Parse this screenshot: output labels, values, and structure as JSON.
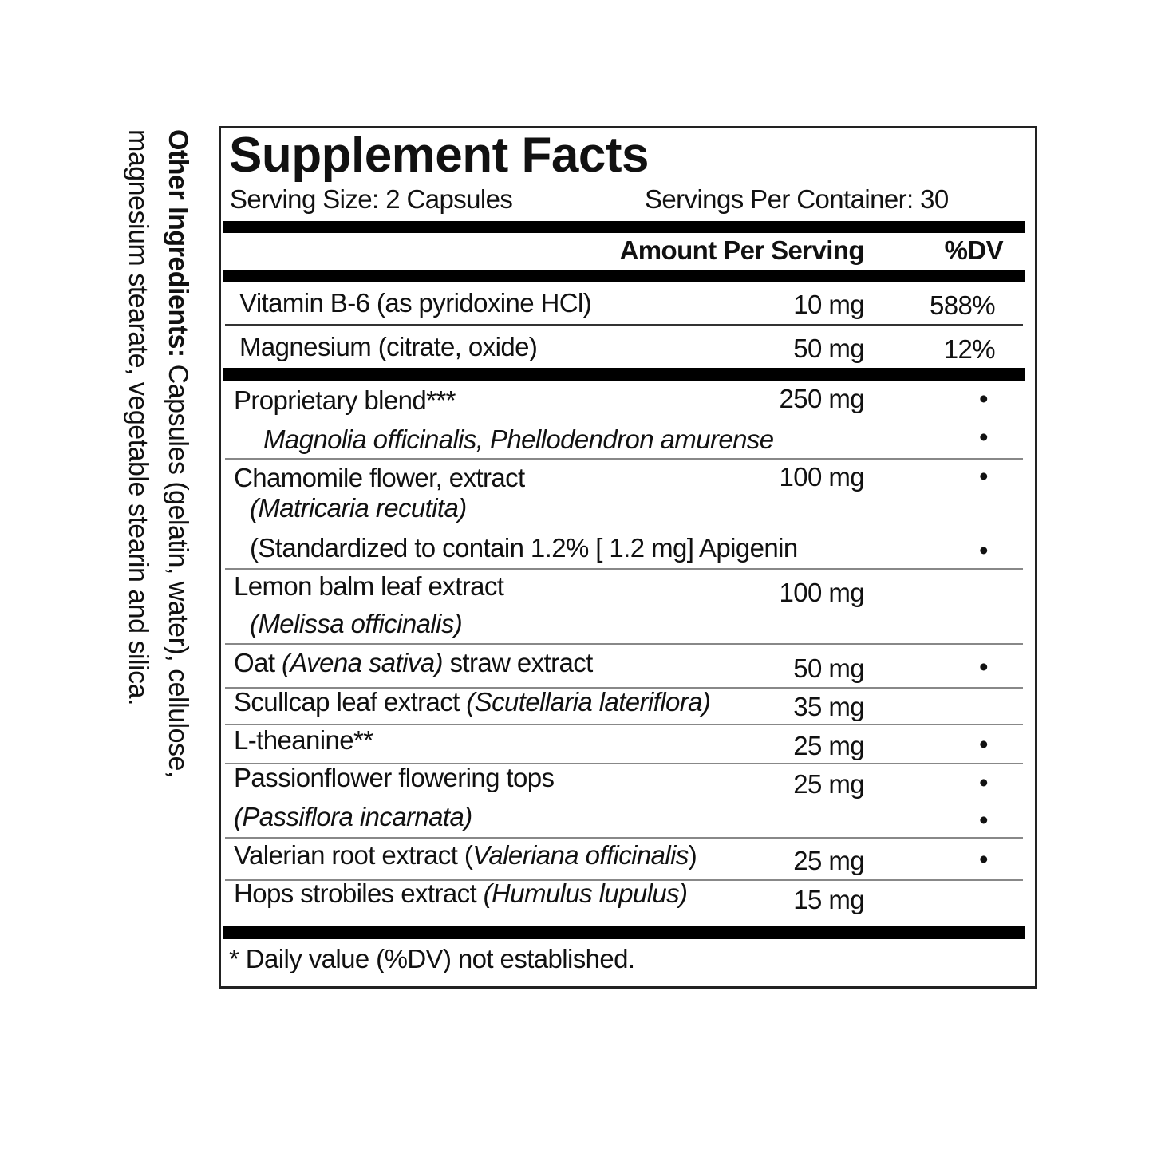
{
  "other_ingredients": {
    "label": "Other Ingredients:",
    "text_line1": " Capsules (gelatin, water), cellulose,",
    "text_line2": "magnesium stearate, vegetable stearin and silica."
  },
  "title": "Supplement Facts",
  "serving_size": "Serving Size: 2 Capsules",
  "servings_per_container": "Servings Per Container: 30",
  "header": {
    "amount": "Amount Per Serving",
    "dv": "%DV"
  },
  "vitamins": [
    {
      "name": "Vitamin B-6 (as pyridoxine HCl)",
      "amount": "10 mg",
      "dv": "588%"
    },
    {
      "name": "Magnesium (citrate, oxide)",
      "amount": "50 mg",
      "dv": "12%"
    }
  ],
  "ingredients": {
    "proprietary": {
      "name": "Proprietary blend***",
      "amount": "250 mg",
      "dv": "•",
      "sub": "Magnolia officinalis, Phellodendron amurense",
      "sub_dv": "•"
    },
    "chamomile": {
      "name": "Chamomile flower, extract",
      "amount": "100 mg",
      "dv": "•",
      "latin": "(Matricaria recutita)",
      "standard": "(Standardized to contain 1.2% [ 1.2 mg] Apigenin",
      "standard_dv": "•"
    },
    "lemon_balm": {
      "name": "Lemon balm leaf extract",
      "amount": "100 mg",
      "latin": "(Melissa officinalis)"
    },
    "oat": {
      "name_a": "Oat ",
      "latin": "(Avena sativa)",
      "name_b": " straw extract",
      "amount": "50 mg",
      "dv": "•"
    },
    "scullcap": {
      "name": "Scullcap leaf extract ",
      "latin": "(Scutellaria lateriflora)",
      "amount": "35 mg"
    },
    "theanine": {
      "name": "L-theanine**",
      "amount": "25 mg",
      "dv": "•"
    },
    "passionflower": {
      "name": "Passionflower flowering tops",
      "amount": "25 mg",
      "dv": "•",
      "latin": "(Passiflora incarnata)",
      "latin_dv": "•"
    },
    "valerian": {
      "name_a": "Valerian root extract (",
      "latin": "Valeriana officinalis",
      "name_b": ")",
      "amount": "25 mg",
      "dv": "•"
    },
    "hops": {
      "name": "Hops strobiles extract ",
      "latin": "(Humulus lupulus)",
      "amount": "15 mg"
    }
  },
  "footnote": "* Daily value (%DV) not established."
}
